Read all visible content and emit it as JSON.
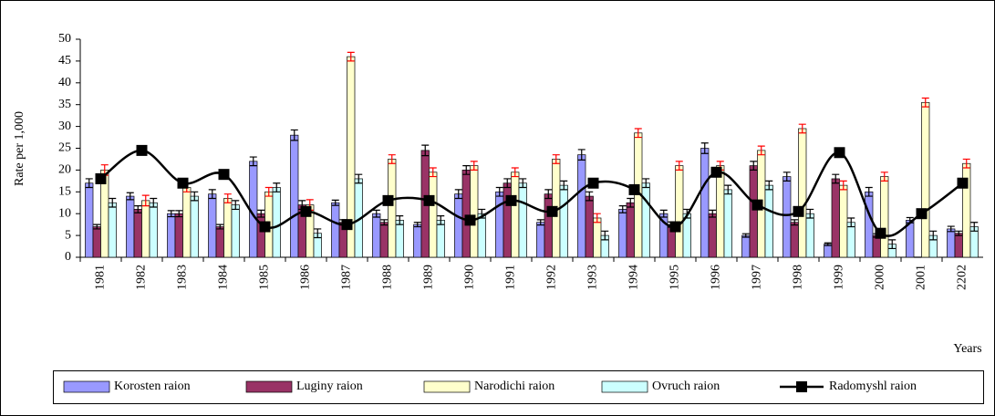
{
  "chart_data": {
    "type": "bar",
    "y_label": "Rate per 1,000",
    "x_label": "Years",
    "categories": [
      "1981",
      "1982",
      "1983",
      "1984",
      "1985",
      "1986",
      "1987",
      "1988",
      "1989",
      "1990",
      "1991",
      "1992",
      "1993",
      "1994",
      "1995",
      "1996",
      "1997",
      "1998",
      "1999",
      "2000",
      "2001",
      "2202"
    ],
    "ylim": [
      0,
      50
    ],
    "yticks": [
      0,
      5,
      10,
      15,
      20,
      25,
      30,
      35,
      40,
      45,
      50
    ],
    "legend": "bottom",
    "series": [
      {
        "name": "Korosten raion",
        "color": "#9999ff",
        "error_color": "#000000",
        "values": [
          17,
          14,
          10,
          14.5,
          22,
          28,
          12.5,
          10,
          7.5,
          14.5,
          15,
          8,
          23.5,
          11,
          10,
          25,
          5,
          18.5,
          3,
          15,
          8.5,
          6.5
        ],
        "errors": [
          1,
          0.8,
          0.7,
          1,
          1,
          1.2,
          0.6,
          0.8,
          0.5,
          1,
          1,
          0.6,
          1.2,
          0.8,
          0.8,
          1.2,
          0.4,
          1,
          0.3,
          1,
          0.6,
          0.6
        ]
      },
      {
        "name": "Luginy raion",
        "color": "#993366",
        "error_color": "#000000",
        "values": [
          7,
          11,
          10,
          7,
          10,
          12,
          8,
          8,
          24.5,
          20,
          17,
          14.5,
          14,
          12.5,
          7.5,
          10,
          21,
          8,
          18,
          5,
          0,
          5.5
        ],
        "errors": [
          0.5,
          0.8,
          0.7,
          0.5,
          0.8,
          1,
          0.6,
          0.6,
          1.2,
          1,
          1,
          1,
          1,
          1,
          0.6,
          0.8,
          1,
          0.6,
          1,
          0.4,
          0,
          0.5
        ]
      },
      {
        "name": "Narodichi raion",
        "color": "#ffffcc",
        "error_color": "#ff0000",
        "values": [
          20,
          13,
          16,
          13.5,
          15,
          12,
          46,
          22.5,
          19.5,
          21,
          19.5,
          22.5,
          9,
          28.5,
          21,
          21,
          24.5,
          29.5,
          16.5,
          18.5,
          35.5,
          21.5
        ],
        "errors": [
          1.2,
          1.2,
          1,
          1,
          1,
          1.2,
          1,
          1,
          1,
          1,
          1,
          1,
          1,
          1,
          1,
          1,
          1,
          1,
          1,
          1,
          1,
          1
        ]
      },
      {
        "name": "Ovruch raion",
        "color": "#ccffff",
        "error_color": "#000000",
        "values": [
          12.5,
          12.5,
          14,
          12,
          16,
          5.5,
          18,
          8.5,
          8.5,
          10,
          17,
          16.5,
          5,
          17,
          10,
          15.5,
          16.5,
          10,
          8,
          3,
          5,
          7
        ],
        "errors": [
          1,
          1,
          1,
          1,
          1,
          1,
          1,
          1,
          1,
          1,
          1,
          1,
          1,
          1,
          1,
          1,
          1,
          1,
          1,
          1,
          1,
          1
        ]
      },
      {
        "name": "Radomyshl raion",
        "color": "#000000",
        "kind": "line",
        "values": [
          18,
          24.5,
          17,
          19,
          7,
          10.5,
          7.5,
          13,
          13,
          8.5,
          13,
          10.5,
          17,
          15.5,
          7,
          19.5,
          12,
          10.5,
          24,
          5.5,
          10,
          17
        ]
      }
    ]
  }
}
